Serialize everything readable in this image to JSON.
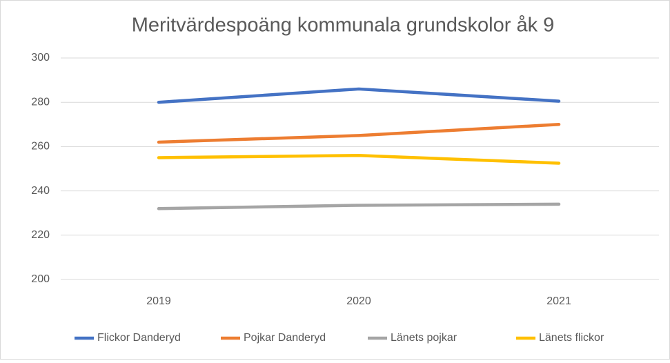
{
  "chart_data": {
    "type": "line",
    "title": "Meritvärdespoäng kommunala grundskolor åk 9",
    "categories": [
      "2019",
      "2020",
      "2021"
    ],
    "series": [
      {
        "name": "Flickor Danderyd",
        "color": "#4472c4",
        "values": [
          280,
          286,
          280.5
        ]
      },
      {
        "name": "Pojkar Danderyd",
        "color": "#ed7d31",
        "values": [
          262,
          265,
          270
        ]
      },
      {
        "name": "Länets pojkar",
        "color": "#a5a5a5",
        "values": [
          232,
          233.5,
          234
        ]
      },
      {
        "name": "Länets flickor",
        "color": "#ffc000",
        "values": [
          255,
          256,
          252.5
        ]
      }
    ],
    "ylim": [
      200,
      300
    ],
    "yticks": [
      200,
      220,
      240,
      260,
      280,
      300
    ],
    "grid": true,
    "legend": "bottom"
  }
}
